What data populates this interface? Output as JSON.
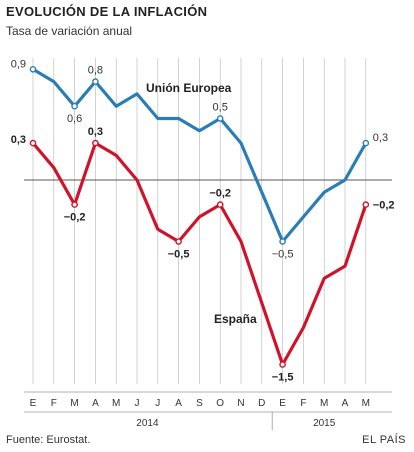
{
  "chart_data": {
    "type": "line",
    "title": "EVOLUCIÓN DE LA INFLACIÓN",
    "subtitle": "Tasa de variación anual",
    "x": [
      "E",
      "F",
      "M",
      "A",
      "M",
      "J",
      "J",
      "A",
      "S",
      "O",
      "N",
      "D",
      "E",
      "F",
      "M",
      "A",
      "M"
    ],
    "years": [
      {
        "label": "2014",
        "from": 0,
        "to": 11
      },
      {
        "label": "2015",
        "from": 12,
        "to": 16
      }
    ],
    "ylim": [
      -1.6,
      1.0
    ],
    "series": [
      {
        "name": "Unión Europea",
        "color": "#2a7db5",
        "values": [
          0.9,
          0.8,
          0.6,
          0.8,
          0.6,
          0.7,
          0.5,
          0.5,
          0.4,
          0.5,
          0.3,
          -0.1,
          -0.5,
          -0.3,
          -0.1,
          0.0,
          0.3
        ],
        "labels": [
          {
            "i": 0,
            "text": "0,9",
            "pos": "left"
          },
          {
            "i": 2,
            "text": "0,6",
            "pos": "below"
          },
          {
            "i": 3,
            "text": "0,8",
            "pos": "above"
          },
          {
            "i": 9,
            "text": "0,5",
            "pos": "above"
          },
          {
            "i": 12,
            "text": "−0,5",
            "pos": "below"
          },
          {
            "i": 16,
            "text": "0,3",
            "pos": "right"
          }
        ]
      },
      {
        "name": "España",
        "color": "#d0122a",
        "values": [
          0.3,
          0.1,
          -0.2,
          0.3,
          0.2,
          0.0,
          -0.4,
          -0.5,
          -0.3,
          -0.2,
          -0.5,
          -1.0,
          -1.5,
          -1.2,
          -0.8,
          -0.7,
          -0.2
        ],
        "labels": [
          {
            "i": 0,
            "text": "0,3",
            "pos": "left"
          },
          {
            "i": 2,
            "text": "−0,2",
            "pos": "below"
          },
          {
            "i": 3,
            "text": "0,3",
            "pos": "above"
          },
          {
            "i": 7,
            "text": "−0,5",
            "pos": "below"
          },
          {
            "i": 9,
            "text": "−0,2",
            "pos": "above"
          },
          {
            "i": 12,
            "text": "−1,5",
            "pos": "below"
          },
          {
            "i": 16,
            "text": "−0,2",
            "pos": "right"
          }
        ]
      }
    ]
  },
  "footer": {
    "source": "Fuente: Eurostat.",
    "brand": "EL PAÍS"
  }
}
